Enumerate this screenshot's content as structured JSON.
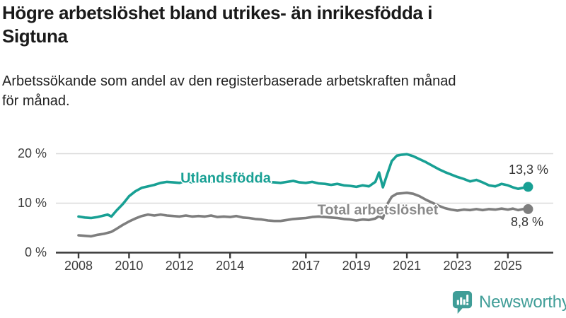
{
  "header": {
    "title": "Högre arbetslöshet bland utrikes- än inrikesfödda i\nSigtuna",
    "subtitle": "Arbetssökande som andel av den registerbaserade arbetskraften månad\nför månad."
  },
  "chart": {
    "colors": {
      "utlandsfodda": "#18a094",
      "total_line": "#7e7e7e",
      "total_label": "#8a8a8a",
      "grid": "#d9d9d9",
      "axis": "#3a3a3a",
      "tick_text": "#3d3d3d",
      "value_text": "#333333",
      "logo_teal": "#3f9d97"
    }
  },
  "chart_data": {
    "type": "line",
    "title": "Högre arbetslöshet bland utrikes- än inrikesfödda i Sigtuna",
    "subtitle": "Arbetssökande som andel av den registerbaserade arbetskraften månad för månad.",
    "xlabel": "",
    "ylabel": "",
    "xlim": [
      2008,
      2025.9
    ],
    "ylim": [
      0,
      20
    ],
    "grid": "horizontal",
    "legend_position": "inline-labels",
    "x": [
      2008.0,
      2008.25,
      2008.5,
      2008.75,
      2009.0,
      2009.15,
      2009.3,
      2009.5,
      2009.75,
      2010.0,
      2010.25,
      2010.5,
      2010.75,
      2011.0,
      2011.25,
      2011.5,
      2011.75,
      2012.0,
      2012.25,
      2012.5,
      2012.75,
      2013.0,
      2013.25,
      2013.5,
      2013.75,
      2014.0,
      2014.25,
      2014.5,
      2014.75,
      2015.0,
      2015.25,
      2015.5,
      2015.75,
      2016.0,
      2016.25,
      2016.5,
      2016.75,
      2017.0,
      2017.25,
      2017.5,
      2017.75,
      2018.0,
      2018.25,
      2018.5,
      2018.75,
      2019.0,
      2019.25,
      2019.5,
      2019.75,
      2019.9,
      2020.05,
      2020.2,
      2020.4,
      2020.6,
      2020.8,
      2021.0,
      2021.25,
      2021.5,
      2021.75,
      2022.0,
      2022.25,
      2022.5,
      2022.75,
      2023.0,
      2023.25,
      2023.5,
      2023.75,
      2024.0,
      2024.25,
      2024.5,
      2024.75,
      2025.0,
      2025.2,
      2025.4,
      2025.6,
      2025.8
    ],
    "series": [
      {
        "name": "Utlandsfödda",
        "color": "#18a094",
        "end_label": "13,3 %",
        "end_value": 13.3,
        "values": [
          7.3,
          7.1,
          7.0,
          7.2,
          7.5,
          7.7,
          7.3,
          8.5,
          9.8,
          11.4,
          12.4,
          13.1,
          13.4,
          13.7,
          14.1,
          14.3,
          14.2,
          14.1,
          14.5,
          14.2,
          14.4,
          14.5,
          14.3,
          14.6,
          14.4,
          14.3,
          14.6,
          14.7,
          14.5,
          14.4,
          14.6,
          14.3,
          14.2,
          14.1,
          14.3,
          14.5,
          14.2,
          14.1,
          14.3,
          14.0,
          13.9,
          13.7,
          13.9,
          13.6,
          13.5,
          13.3,
          13.6,
          13.4,
          14.3,
          16.2,
          13.2,
          15.5,
          18.5,
          19.6,
          19.8,
          19.9,
          19.5,
          18.9,
          18.3,
          17.6,
          16.9,
          16.3,
          15.8,
          15.3,
          14.9,
          14.4,
          14.7,
          14.2,
          13.6,
          13.4,
          13.9,
          13.6,
          13.2,
          12.9,
          13.1,
          13.3
        ]
      },
      {
        "name": "Total arbetslöshet",
        "color": "#7e7e7e",
        "end_label": "8,8 %",
        "end_value": 8.8,
        "values": [
          3.5,
          3.4,
          3.3,
          3.6,
          3.8,
          4.0,
          4.2,
          4.8,
          5.6,
          6.3,
          6.9,
          7.4,
          7.7,
          7.5,
          7.7,
          7.5,
          7.4,
          7.3,
          7.5,
          7.3,
          7.4,
          7.3,
          7.5,
          7.2,
          7.3,
          7.2,
          7.4,
          7.1,
          7.0,
          6.8,
          6.7,
          6.5,
          6.4,
          6.4,
          6.6,
          6.8,
          6.9,
          7.0,
          7.2,
          7.3,
          7.2,
          7.1,
          7.0,
          6.8,
          6.7,
          6.5,
          6.7,
          6.6,
          6.9,
          7.4,
          6.9,
          9.6,
          11.3,
          11.9,
          12.0,
          12.1,
          11.9,
          11.4,
          10.7,
          10.1,
          9.5,
          9.0,
          8.7,
          8.5,
          8.7,
          8.6,
          8.8,
          8.6,
          8.8,
          8.7,
          8.9,
          8.7,
          8.9,
          8.6,
          8.8,
          8.8
        ]
      }
    ],
    "x_tick_labels": [
      "2008",
      "2010",
      "2012",
      "2014",
      "2017",
      "2019",
      "2021",
      "2023",
      "2025"
    ],
    "y_ticks": [
      {
        "value": 0,
        "label": "0 %"
      },
      {
        "value": 10,
        "label": "10 %"
      },
      {
        "value": 20,
        "label": "20 %"
      }
    ]
  },
  "logo": {
    "text": "Newsworthy"
  }
}
